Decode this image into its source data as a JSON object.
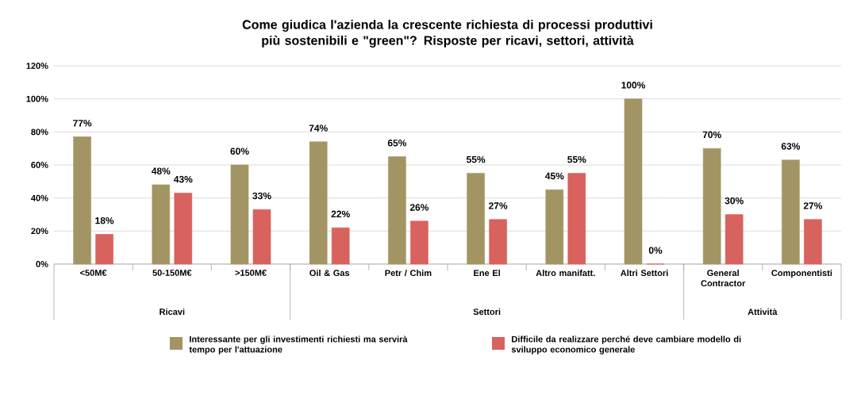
{
  "chart_data": {
    "type": "bar",
    "title": "Come giudica l'azienda la crescente richiesta di processi produttivi più sostenibili e \"green\"? Risposte per ricavi, settori, attività",
    "categories": [
      "<50M€",
      "50-150M€",
      ">150M€",
      "Oil & Gas",
      "Petr / Chim",
      "Ene El",
      "Altro manifatt.",
      "Altri Settori",
      "General Contractor",
      "Componentisti"
    ],
    "series": [
      {
        "name": "Interessante per gli investimenti richiesti ma servirà tempo per l'attuazione",
        "color": "#a39563",
        "values": [
          77,
          48,
          60,
          74,
          65,
          55,
          45,
          100,
          70,
          63
        ],
        "value_labels": [
          "77%",
          "48%",
          "60%",
          "74%",
          "65%",
          "55%",
          "45%",
          "100%",
          "70%",
          "63%"
        ]
      },
      {
        "name": "Difficile da realizzare perché deve cambiare modello di sviluppo economico generale",
        "color": "#d8625e",
        "values": [
          18,
          43,
          33,
          22,
          26,
          27,
          55,
          0,
          30,
          27
        ],
        "value_labels": [
          "18%",
          "43%",
          "33%",
          "22%",
          "26%",
          "27%",
          "55%",
          "0%",
          "30%",
          "27%"
        ]
      }
    ],
    "ylim": [
      0,
      120
    ],
    "yticks": [
      {
        "value": 0,
        "label": "0%"
      },
      {
        "value": 20,
        "label": "20%"
      },
      {
        "value": 40,
        "label": "40%"
      },
      {
        "value": 60,
        "label": "60%"
      },
      {
        "value": 80,
        "label": "80%"
      },
      {
        "value": 100,
        "label": "100%"
      },
      {
        "value": 120,
        "label": "120%"
      }
    ],
    "grid": "y",
    "legend": "bottom",
    "annotations": [
      "Ricavi",
      "Settori",
      "Attività"
    ]
  }
}
